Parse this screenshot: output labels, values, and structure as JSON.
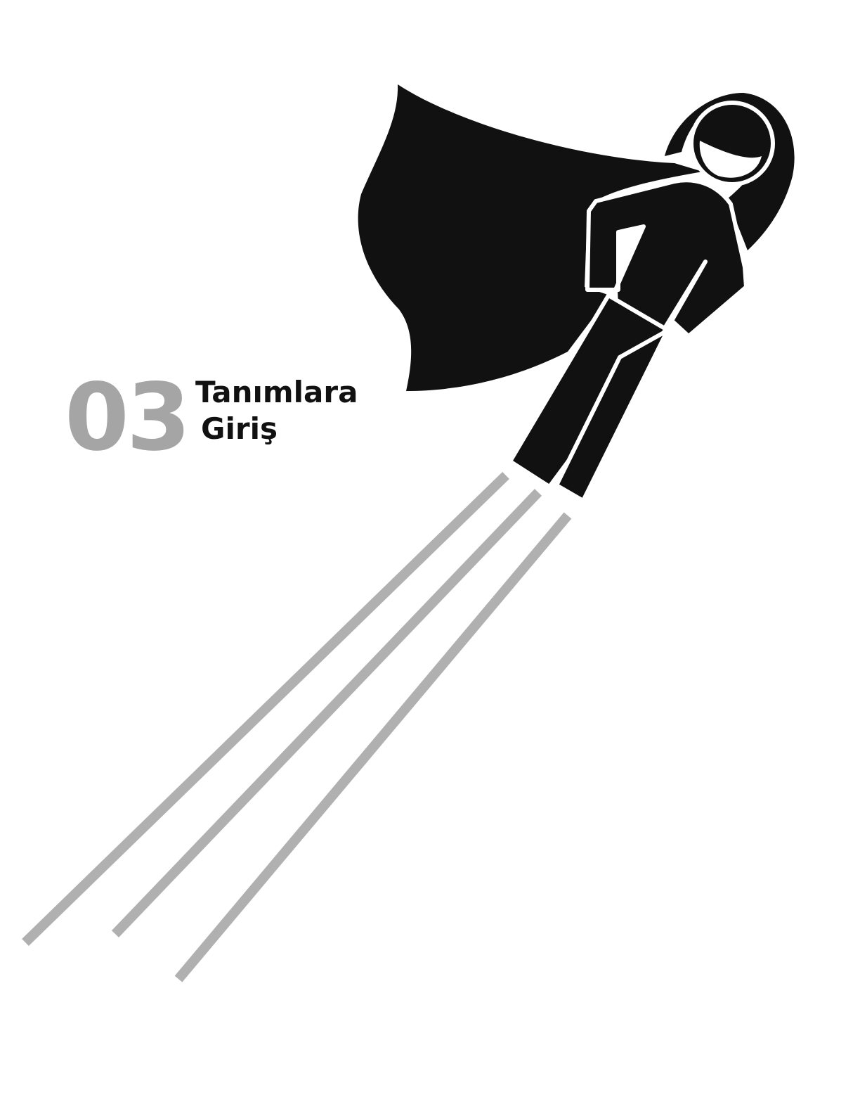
{
  "chapter": {
    "number": "03",
    "title_line1": "Tanımlara",
    "title_line2": "Giriş"
  },
  "illustration": {
    "subject": "flying-hero-icon",
    "colors": {
      "figure": "#111111",
      "speed_lines": "#b0b0b0",
      "number": "#a5a5a5",
      "background": "#ffffff"
    }
  }
}
